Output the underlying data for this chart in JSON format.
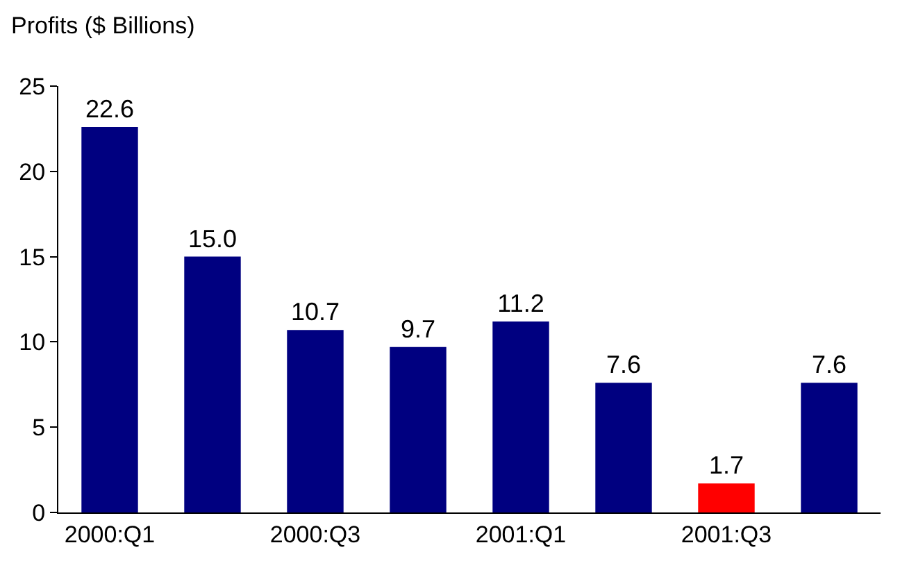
{
  "chart_data": {
    "type": "bar",
    "ylabel": "Profits ($ Billions)",
    "categories": [
      "2000:Q1",
      null,
      "2000:Q3",
      null,
      "2001:Q1",
      null,
      "2001:Q3",
      null
    ],
    "values": [
      22.6,
      15.0,
      10.7,
      9.7,
      11.2,
      7.6,
      1.7,
      7.6
    ],
    "value_labels": [
      "22.6",
      "15.0",
      "10.7",
      "9.7",
      "11.2",
      "7.6",
      "1.7",
      "7.6"
    ],
    "colors": [
      "#000080",
      "#000080",
      "#000080",
      "#000080",
      "#000080",
      "#000080",
      "#ff0000",
      "#000080"
    ],
    "ylim": [
      0,
      25
    ],
    "yticks": [
      0,
      5,
      10,
      15,
      20,
      25
    ]
  }
}
